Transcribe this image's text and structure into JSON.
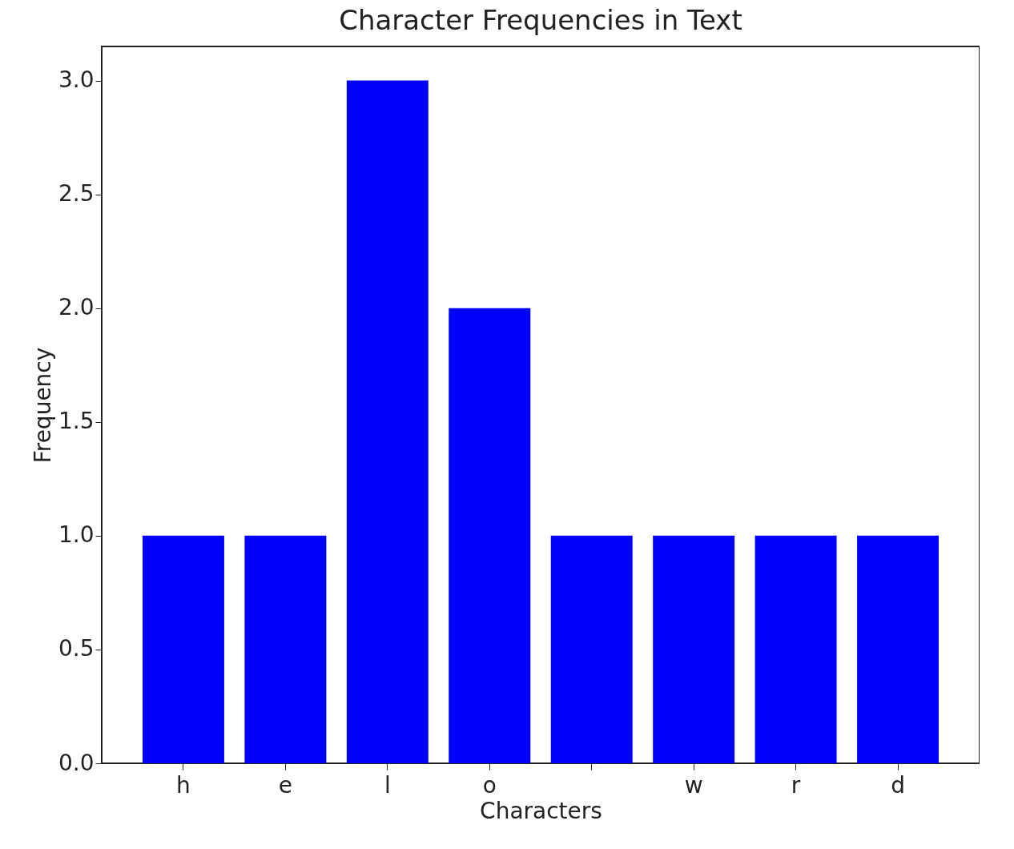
{
  "chart_data": {
    "type": "bar",
    "title": "Character Frequencies in Text",
    "xlabel": "Characters",
    "ylabel": "Frequency",
    "categories": [
      "h",
      "e",
      "l",
      "o",
      null,
      "w",
      "r",
      "d"
    ],
    "values": [
      1,
      1,
      3,
      2,
      1,
      1,
      1,
      1
    ],
    "color": "#0000ff",
    "ylim": [
      0,
      3.15
    ],
    "yticks": [
      {
        "value": 0,
        "label": "0.0"
      },
      0.5,
      {
        "value": 1,
        "label": "1.0"
      },
      1.5,
      {
        "value": 2,
        "label": "2.0"
      },
      2.5,
      {
        "value": 3,
        "label": "3.0"
      }
    ],
    "grid": false
  }
}
